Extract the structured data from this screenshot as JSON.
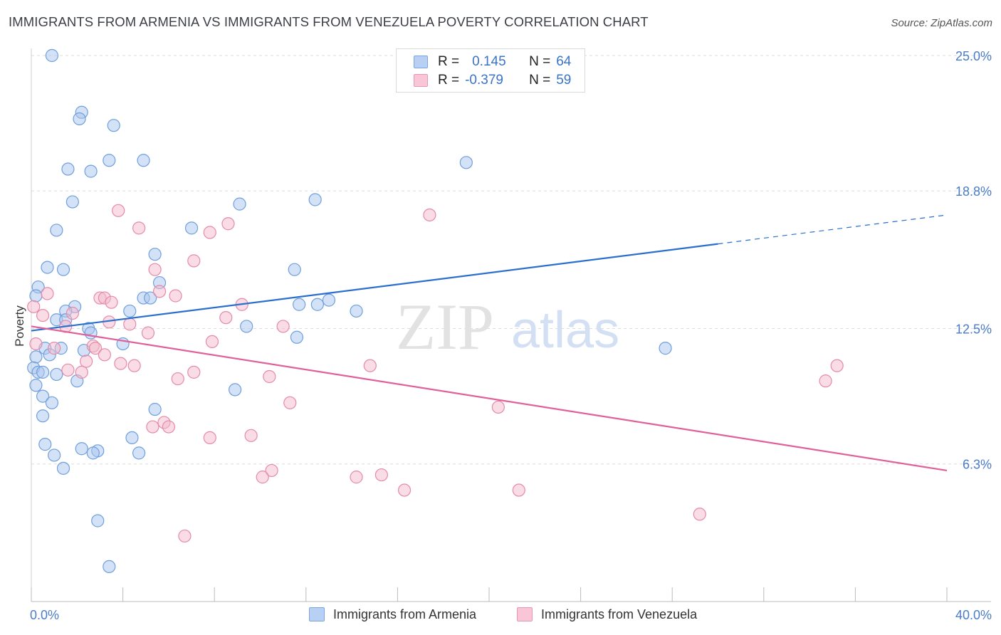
{
  "title": "IMMIGRANTS FROM ARMENIA VS IMMIGRANTS FROM VENEZUELA POVERTY CORRELATION CHART",
  "source": "Source: ZipAtlas.com",
  "watermark": {
    "zip": "ZIP",
    "atlas": "atlas"
  },
  "legend": {
    "row1": {
      "r_label": "R =",
      "r_value": "0.145",
      "n_label": "N =",
      "n_value": "64"
    },
    "row2": {
      "r_label": "R =",
      "r_value": "-0.379",
      "n_label": "N =",
      "n_value": "59"
    }
  },
  "colors": {
    "blue_fill": "#a9c6ef",
    "blue_stroke": "#6f9fdc",
    "blue_line": "#2a6fce",
    "pink_fill": "#f4b9cc",
    "pink_stroke": "#e58aa9",
    "pink_line": "#e0609a",
    "grid": "#dddddd",
    "axis_text": "#4a7cc9"
  },
  "chart_data": {
    "type": "scatter",
    "xlabel": "",
    "ylabel": "Poverty",
    "xlim": [
      0,
      40
    ],
    "ylim": [
      0,
      25
    ],
    "x_tick_labels": [
      "0.0%",
      "40.0%"
    ],
    "y_ticks": [
      6.3,
      12.5,
      18.8,
      25.0
    ],
    "y_tick_labels": [
      "6.3%",
      "12.5%",
      "18.8%",
      "25.0%"
    ],
    "grid": true,
    "series": [
      {
        "name": "Immigrants from Armenia",
        "color": "blue",
        "points": [
          [
            0.9,
            25.0
          ],
          [
            2.2,
            22.4
          ],
          [
            2.1,
            22.1
          ],
          [
            3.6,
            21.8
          ],
          [
            1.6,
            19.8
          ],
          [
            2.6,
            19.7
          ],
          [
            3.4,
            20.2
          ],
          [
            4.9,
            20.2
          ],
          [
            19.0,
            20.1
          ],
          [
            1.8,
            18.3
          ],
          [
            9.1,
            18.2
          ],
          [
            12.4,
            18.4
          ],
          [
            1.1,
            17.0
          ],
          [
            7.0,
            17.1
          ],
          [
            5.4,
            15.9
          ],
          [
            0.7,
            15.3
          ],
          [
            1.4,
            15.2
          ],
          [
            11.5,
            15.2
          ],
          [
            5.6,
            14.6
          ],
          [
            0.3,
            14.4
          ],
          [
            0.2,
            14.0
          ],
          [
            4.9,
            13.9
          ],
          [
            5.2,
            13.9
          ],
          [
            11.7,
            13.6
          ],
          [
            12.5,
            13.6
          ],
          [
            13.0,
            13.8
          ],
          [
            1.9,
            13.5
          ],
          [
            1.5,
            13.3
          ],
          [
            4.3,
            13.3
          ],
          [
            14.2,
            13.3
          ],
          [
            1.1,
            12.9
          ],
          [
            1.5,
            12.9
          ],
          [
            2.5,
            12.5
          ],
          [
            2.6,
            12.3
          ],
          [
            9.4,
            12.6
          ],
          [
            11.6,
            12.1
          ],
          [
            4.0,
            11.8
          ],
          [
            0.6,
            11.6
          ],
          [
            1.3,
            11.6
          ],
          [
            2.3,
            11.5
          ],
          [
            27.7,
            11.6
          ],
          [
            0.8,
            11.3
          ],
          [
            0.2,
            11.2
          ],
          [
            0.1,
            10.7
          ],
          [
            0.3,
            10.5
          ],
          [
            0.5,
            10.5
          ],
          [
            1.1,
            10.4
          ],
          [
            2.0,
            10.1
          ],
          [
            0.2,
            9.9
          ],
          [
            8.9,
            9.7
          ],
          [
            0.5,
            9.4
          ],
          [
            0.9,
            9.1
          ],
          [
            5.4,
            8.8
          ],
          [
            0.5,
            8.5
          ],
          [
            4.4,
            7.5
          ],
          [
            0.6,
            7.2
          ],
          [
            2.2,
            7.0
          ],
          [
            2.9,
            6.9
          ],
          [
            2.7,
            6.8
          ],
          [
            4.7,
            6.8
          ],
          [
            1.0,
            6.7
          ],
          [
            1.4,
            6.1
          ],
          [
            2.9,
            3.7
          ],
          [
            3.4,
            1.6
          ]
        ]
      },
      {
        "name": "Immigrants from Venezuela",
        "color": "pink",
        "points": [
          [
            3.8,
            17.9
          ],
          [
            17.4,
            17.7
          ],
          [
            8.6,
            17.3
          ],
          [
            4.7,
            17.1
          ],
          [
            7.8,
            16.9
          ],
          [
            7.1,
            15.6
          ],
          [
            5.4,
            15.2
          ],
          [
            0.7,
            14.1
          ],
          [
            5.6,
            14.2
          ],
          [
            3.0,
            13.9
          ],
          [
            3.2,
            13.9
          ],
          [
            6.3,
            14.0
          ],
          [
            3.5,
            13.7
          ],
          [
            9.2,
            13.6
          ],
          [
            0.1,
            13.5
          ],
          [
            1.8,
            13.2
          ],
          [
            0.5,
            13.1
          ],
          [
            8.5,
            13.0
          ],
          [
            3.4,
            12.8
          ],
          [
            4.3,
            12.7
          ],
          [
            11.0,
            12.6
          ],
          [
            1.5,
            12.6
          ],
          [
            5.1,
            12.3
          ],
          [
            7.9,
            11.9
          ],
          [
            0.2,
            11.8
          ],
          [
            1.0,
            11.6
          ],
          [
            2.7,
            11.7
          ],
          [
            2.8,
            11.6
          ],
          [
            3.2,
            11.3
          ],
          [
            2.4,
            11.0
          ],
          [
            3.9,
            10.9
          ],
          [
            4.5,
            10.8
          ],
          [
            14.8,
            10.8
          ],
          [
            1.6,
            10.6
          ],
          [
            2.2,
            10.5
          ],
          [
            7.1,
            10.5
          ],
          [
            10.4,
            10.3
          ],
          [
            6.4,
            10.2
          ],
          [
            35.2,
            10.8
          ],
          [
            34.7,
            10.1
          ],
          [
            11.3,
            9.1
          ],
          [
            20.4,
            8.9
          ],
          [
            5.8,
            8.2
          ],
          [
            5.3,
            8.0
          ],
          [
            6.0,
            8.0
          ],
          [
            9.6,
            7.6
          ],
          [
            7.8,
            7.5
          ],
          [
            10.5,
            6.0
          ],
          [
            10.1,
            5.7
          ],
          [
            15.3,
            5.8
          ],
          [
            14.2,
            5.7
          ],
          [
            16.3,
            5.1
          ],
          [
            21.3,
            5.1
          ],
          [
            29.2,
            4.0
          ],
          [
            6.7,
            3.0
          ]
        ]
      }
    ],
    "trendlines": [
      {
        "series": "Immigrants from Armenia",
        "x_start": 0,
        "y_start": 12.4,
        "x_solid_end": 30,
        "x_end": 40,
        "y_end": 17.7
      },
      {
        "series": "Immigrants from Venezuela",
        "x_start": 0,
        "y_start": 12.6,
        "x_end": 40,
        "y_end": 6.0
      }
    ]
  }
}
